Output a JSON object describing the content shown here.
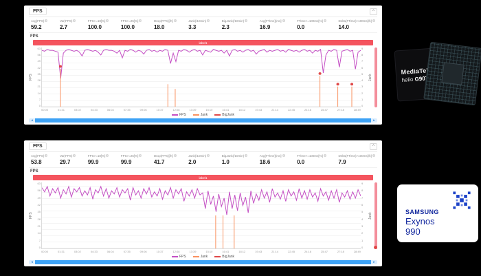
{
  "colors": {
    "fps_line": "#c44fc4",
    "jank_line": "#f9915f",
    "bigjank_dot": "#e04848",
    "label_bar": "#f4545e",
    "scrollbar": "#3da2f5",
    "samsung_blue": "#12279e"
  },
  "icons": {
    "info": "?",
    "collapse": "^",
    "scroll_left": "◂",
    "scroll_right": "▸"
  },
  "legend": [
    {
      "label": "FPS",
      "color": "#c44fc4"
    },
    {
      "label": "Jank",
      "color": "#f9915f"
    },
    {
      "label": "BigJank",
      "color": "#e04848"
    }
  ],
  "panels": [
    {
      "title": "FPS",
      "section_label": "FPS",
      "marker_label": "label1",
      "y_axis_label": "FPS",
      "right_axis_label": "Jank",
      "right_marker": false,
      "stats": [
        {
          "label": "Avg(FPS)",
          "value": "59.2"
        },
        {
          "label": "Var(FPS)",
          "value": "2.7"
        },
        {
          "label": "FPS>=18[%]",
          "value": "100.0"
        },
        {
          "label": "FPS>=25[%]",
          "value": "100.0"
        },
        {
          "label": "Drop(FPS)[/h]",
          "value": "18.0"
        },
        {
          "label": "Jank(/10min)",
          "value": "3.3"
        },
        {
          "label": "BigJank(/10min)",
          "value": "2.3"
        },
        {
          "label": "Avg(FTime)[ms]",
          "value": "16.9"
        },
        {
          "label": "FTime>=100ms[%]",
          "value": "0.0"
        },
        {
          "label": "Delta(FTime)>100ms[/h]",
          "value": "14.0"
        }
      ],
      "chart": {
        "type": "line",
        "y_max": 63,
        "y_ticks": [
          "63",
          "56",
          "49",
          "42",
          "35",
          "28",
          "21",
          "14",
          "7",
          "0"
        ],
        "right_ticks": [
          "9",
          "8",
          "7",
          "6",
          "5",
          "4",
          "3",
          "2",
          "1",
          "0"
        ],
        "x_labels": [
          "00:00",
          "01:31",
          "03:02",
          "04:33",
          "06:04",
          "07:35",
          "09:06",
          "10:37",
          "12:08",
          "13:39",
          "15:10",
          "16:41",
          "18:12",
          "19:43",
          "21:14",
          "22:45",
          "24:16",
          "25:47",
          "27:18",
          "28:49"
        ],
        "fps": [
          60,
          59,
          61,
          60,
          60,
          59,
          58,
          30,
          57,
          60,
          61,
          60,
          59,
          60,
          58,
          54,
          60,
          61,
          60,
          59,
          60,
          58,
          55,
          60,
          61,
          60,
          60,
          59,
          57,
          60,
          52,
          60,
          59,
          61,
          60,
          58,
          60,
          59,
          56,
          60,
          61,
          59,
          60,
          58,
          60,
          59,
          61,
          60,
          46,
          57,
          48,
          60,
          59,
          61,
          60,
          58,
          60,
          61,
          59,
          60,
          55,
          60,
          59,
          58,
          61,
          60,
          59,
          60,
          57,
          60,
          54,
          60,
          61,
          59,
          60,
          58,
          60,
          61,
          59,
          60,
          56,
          59,
          60,
          61,
          58,
          60,
          59,
          60,
          61,
          59,
          60,
          58,
          61,
          60,
          59,
          60,
          58,
          60,
          61,
          59,
          60,
          57,
          60,
          59,
          61,
          36,
          55,
          60,
          59,
          61,
          60,
          42,
          59,
          60,
          61,
          59,
          60,
          40,
          58,
          60
        ],
        "jank_events": [
          {
            "x": 0.058,
            "h": 0.64,
            "dot": true
          },
          {
            "x": 0.395,
            "h": 0.38,
            "dot": false
          },
          {
            "x": 0.418,
            "h": 0.3,
            "dot": false
          },
          {
            "x": 0.872,
            "h": 0.52,
            "dot": true
          },
          {
            "x": 0.928,
            "h": 0.34,
            "dot": true
          },
          {
            "x": 0.972,
            "h": 0.34,
            "dot": true
          }
        ]
      }
    },
    {
      "title": "FPS",
      "section_label": "FPS",
      "marker_label": "label1",
      "y_axis_label": "FPS",
      "right_axis_label": "Jank",
      "right_marker": true,
      "stats": [
        {
          "label": "Avg(FPS)",
          "value": "53.8"
        },
        {
          "label": "Var(FPS)",
          "value": "29.7"
        },
        {
          "label": "FPS>=18[%]",
          "value": "99.9"
        },
        {
          "label": "FPS>=25[%]",
          "value": "99.9"
        },
        {
          "label": "Drop(FPS)[/h]",
          "value": "41.7"
        },
        {
          "label": "Jank(/10min)",
          "value": "2.0"
        },
        {
          "label": "BigJank(/10min)",
          "value": "1.0"
        },
        {
          "label": "Avg(FTime)[ms]",
          "value": "18.6"
        },
        {
          "label": "FTime>=100ms[%]",
          "value": "0.0"
        },
        {
          "label": "Delta(FTime)>100ms[/h]",
          "value": "7.9"
        }
      ],
      "chart": {
        "type": "line",
        "y_max": 63,
        "y_ticks": [
          "63",
          "56",
          "49",
          "42",
          "35",
          "28",
          "21",
          "14",
          "7",
          "0"
        ],
        "right_ticks": [
          "9",
          "8",
          "7",
          "6",
          "5",
          "4",
          "3",
          "2",
          "1",
          "0"
        ],
        "x_labels": [
          "00:00",
          "01:31",
          "03:02",
          "04:33",
          "06:04",
          "07:35",
          "09:06",
          "10:37",
          "12:08",
          "13:39",
          "15:10",
          "16:41",
          "18:12",
          "19:43",
          "21:14",
          "22:45",
          "24:16",
          "25:47",
          "27:18",
          "28:49"
        ],
        "fps": [
          58,
          54,
          59,
          50,
          57,
          53,
          58,
          48,
          56,
          52,
          59,
          49,
          57,
          54,
          58,
          50,
          55,
          51,
          58,
          47,
          56,
          53,
          59,
          50,
          57,
          48,
          55,
          52,
          58,
          49,
          56,
          53,
          57,
          46,
          58,
          51,
          55,
          48,
          57,
          52,
          58,
          49,
          54,
          50,
          57,
          47,
          55,
          51,
          58,
          48,
          56,
          52,
          57,
          45,
          54,
          50,
          56,
          48,
          57,
          51,
          53,
          38,
          55,
          42,
          50,
          35,
          52,
          40,
          48,
          32,
          54,
          38,
          51,
          36,
          53,
          41,
          49,
          34,
          55,
          43,
          52,
          46,
          56,
          48,
          54,
          44,
          57,
          49,
          53,
          47,
          55,
          45,
          56,
          50,
          54,
          46,
          57,
          48,
          55,
          47,
          56,
          49,
          53,
          45,
          57,
          50,
          54,
          46,
          55,
          48,
          56,
          44,
          53,
          49,
          55,
          47,
          54,
          48,
          56,
          50
        ],
        "jank_events": [
          {
            "x": 0.545,
            "h": 0.5,
            "dot": false
          },
          {
            "x": 0.568,
            "h": 0.5,
            "dot": false
          },
          {
            "x": 0.603,
            "h": 0.5,
            "dot": false
          }
        ]
      }
    }
  ],
  "chips": {
    "mediatek": {
      "brand": "MediaTek",
      "line": "helio",
      "model": "G90T"
    },
    "exynos": {
      "brand": "SAMSUNG",
      "name": "Exynos",
      "model": "990"
    }
  }
}
